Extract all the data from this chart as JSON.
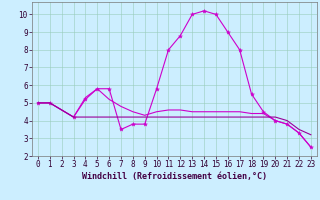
{
  "bg_color": "#cceeff",
  "grid_color": "#99ccbb",
  "line_color": "#cc00cc",
  "xlabel": "Windchill (Refroidissement éolien,°C)",
  "xlim": [
    -0.5,
    23.5
  ],
  "ylim": [
    2,
    10.7
  ],
  "yticks": [
    2,
    3,
    4,
    5,
    6,
    7,
    8,
    9,
    10
  ],
  "xticks": [
    0,
    1,
    2,
    3,
    4,
    5,
    6,
    7,
    8,
    9,
    10,
    11,
    12,
    13,
    14,
    15,
    16,
    17,
    18,
    19,
    20,
    21,
    22,
    23
  ],
  "tick_fontsize": 5.5,
  "xlabel_fontsize": 6,
  "line1_x": [
    0,
    1,
    3,
    4,
    5,
    6,
    7,
    8,
    9,
    10,
    11,
    12,
    13,
    14,
    15,
    16,
    17,
    18,
    19,
    20,
    21,
    22,
    23
  ],
  "line1_y": [
    5.0,
    5.0,
    4.2,
    5.2,
    5.8,
    5.8,
    3.5,
    3.8,
    3.8,
    5.8,
    8.0,
    8.8,
    10.0,
    10.2,
    10.0,
    9.0,
    8.0,
    5.5,
    4.5,
    4.0,
    3.8,
    3.3,
    2.5
  ],
  "line2_x": [
    0,
    1,
    3,
    4,
    5,
    6,
    7,
    8,
    9,
    10,
    11,
    12,
    13,
    14,
    15,
    16,
    17,
    18,
    19,
    20,
    21,
    22,
    23
  ],
  "line2_y": [
    5.0,
    5.0,
    4.2,
    5.3,
    5.8,
    5.2,
    4.8,
    4.5,
    4.3,
    4.5,
    4.6,
    4.6,
    4.5,
    4.5,
    4.5,
    4.5,
    4.5,
    4.4,
    4.4,
    4.0,
    3.8,
    3.3,
    2.5
  ],
  "line3_x": [
    0,
    1,
    3,
    4,
    5,
    6,
    7,
    8,
    9,
    10,
    11,
    12,
    13,
    14,
    15,
    16,
    17,
    18,
    19,
    20,
    21,
    22,
    23
  ],
  "line3_y": [
    5.0,
    5.0,
    4.2,
    4.2,
    4.2,
    4.2,
    4.2,
    4.2,
    4.2,
    4.2,
    4.2,
    4.2,
    4.2,
    4.2,
    4.2,
    4.2,
    4.2,
    4.2,
    4.2,
    4.2,
    4.0,
    3.5,
    3.2
  ]
}
